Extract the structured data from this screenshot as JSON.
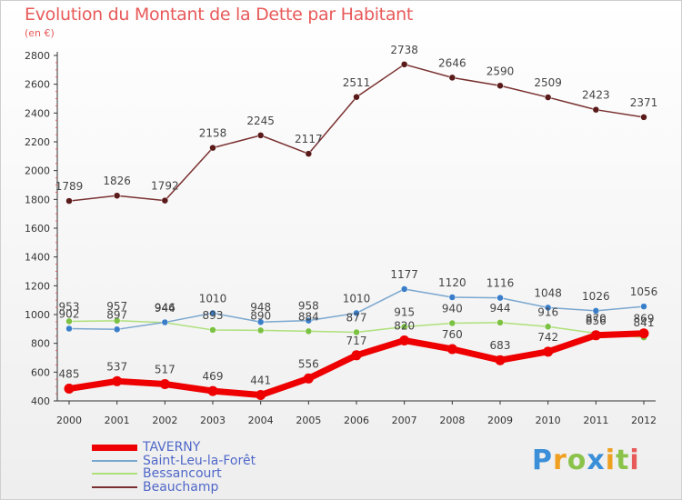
{
  "title": "Evolution du Montant de la Dette par Habitant",
  "unit": "(en €)",
  "logo": {
    "text": "Proxiti",
    "letters": [
      {
        "ch": "P",
        "color": "#3b8fd9"
      },
      {
        "ch": "r",
        "color": "#f0a020"
      },
      {
        "ch": "o",
        "color": "#8bc34a"
      },
      {
        "ch": "x",
        "color": "#3b8fd9"
      },
      {
        "ch": "i",
        "color": "#f0a020"
      },
      {
        "ch": "t",
        "color": "#8bc34a"
      },
      {
        "ch": "i",
        "color": "#e85a5a"
      }
    ]
  },
  "chart_data": {
    "type": "line",
    "title": "Evolution du Montant de la Dette par Habitant",
    "ylabel": "(en €)",
    "ylim": [
      400,
      2800
    ],
    "yticks": [
      400,
      600,
      800,
      1000,
      1200,
      1400,
      1600,
      1800,
      2000,
      2200,
      2400,
      2600,
      2800
    ],
    "x": [
      "2000",
      "2001",
      "2002",
      "2003",
      "2004",
      "2005",
      "2006",
      "2007",
      "2008",
      "2009",
      "2010",
      "2011",
      "2012"
    ],
    "grid": false,
    "legend": "bottom-left",
    "series": [
      {
        "name": "TAVERNY",
        "color": "#ee0000",
        "marker": "#ee0000",
        "width": 7,
        "values": [
          485,
          537,
          517,
          469,
          441,
          556,
          717,
          820,
          760,
          683,
          742,
          856,
          869
        ]
      },
      {
        "name": "Saint-Leu-la-Forêt",
        "color": "#7aa7cf",
        "marker": "#3a7ec9",
        "width": 1.5,
        "values": [
          902,
          897,
          946,
          1010,
          948,
          958,
          1010,
          1177,
          1120,
          1116,
          1048,
          1026,
          1056
        ]
      },
      {
        "name": "Bessancourt",
        "color": "#aee07a",
        "marker": "#7bc142",
        "width": 1.5,
        "values": [
          953,
          957,
          944,
          893,
          890,
          884,
          877,
          915,
          940,
          944,
          916,
          870,
          841
        ]
      },
      {
        "name": "Beauchamp",
        "color": "#7a3030",
        "marker": "#5a1a1a",
        "width": 1.5,
        "values": [
          1789,
          1826,
          1792,
          2158,
          2245,
          2117,
          2511,
          2738,
          2646,
          2590,
          2509,
          2423,
          2371
        ]
      }
    ],
    "labels": {
      "Saint-Leu-la-Forêt": [
        "902",
        "897",
        "946",
        "1010",
        "948",
        "958",
        "1010",
        "1177",
        "1120",
        "1116",
        "1048",
        "1026",
        "1056"
      ],
      "Bessancourt": [
        "953",
        "957",
        "944",
        "893",
        "890",
        "884",
        "877",
        "915",
        "940",
        "944",
        "916",
        "870",
        "841"
      ],
      "Beauchamp": [
        "1789",
        "1826",
        "1792",
        "2158",
        "2245",
        "2117",
        "2511",
        "2738",
        "2646",
        "2590",
        "2509",
        "2423",
        "2371"
      ],
      "TAVERNY": [
        "485",
        "537",
        "517",
        "469",
        "441",
        "556",
        "717",
        "820",
        "760",
        "683",
        "742",
        "856",
        "869"
      ]
    }
  }
}
